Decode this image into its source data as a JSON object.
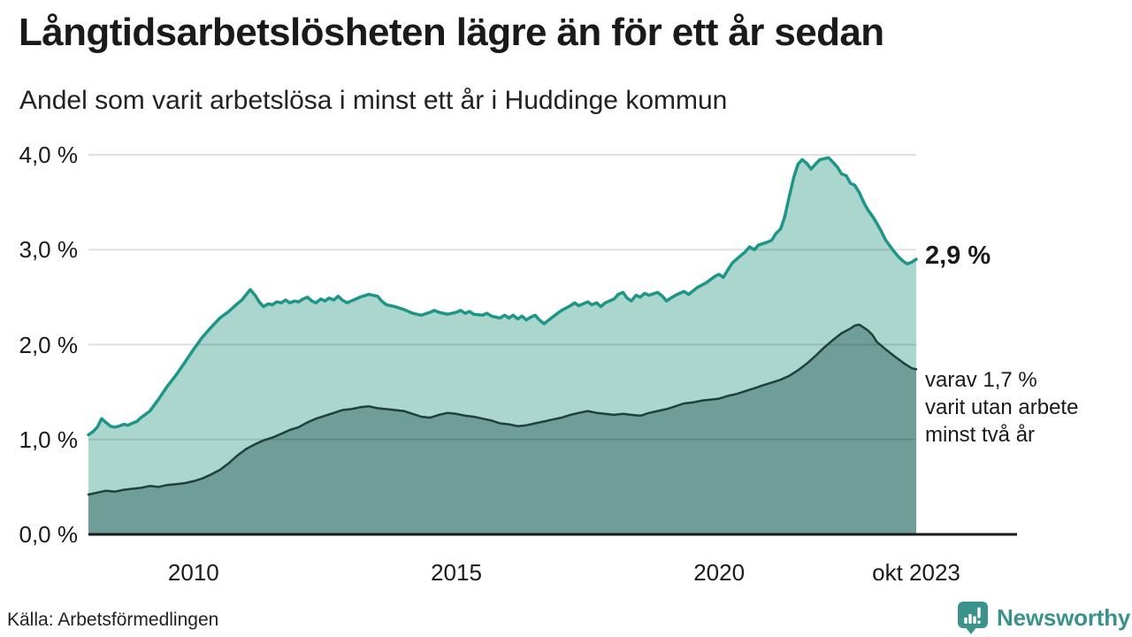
{
  "header": {
    "title": "Långtidsarbetslösheten lägre än för ett år sedan",
    "subtitle": "Andel som varit arbetslösa i minst ett år i Huddinge kommun"
  },
  "annotations": {
    "latest_value_label": "2,9 %",
    "secondary_label_lines": [
      "varav 1,7 %",
      "varit utan arbete",
      "minst två år"
    ]
  },
  "footer": {
    "source": "Källa: Arbetsförmedlingen",
    "brand_name": "Newsworthy"
  },
  "colors": {
    "series_one_line": "#1d9688",
    "series_one_fill": "#aad6ce",
    "series_two_line": "#20403c",
    "series_two_fill": "#6f9e99",
    "axis": "#1a1a1a",
    "grid": "rgba(0,0,0,0.12)",
    "brand_teal": "#3a938b",
    "text": "#1a1a1a"
  },
  "chart_data": {
    "type": "area",
    "title": "Långtidsarbetslösheten lägre än för ett år sedan",
    "subtitle": "Andel som varit arbetslösa i minst ett år i Huddinge kommun",
    "unit": "%",
    "grid": true,
    "xlim": [
      2008,
      2023.75
    ],
    "ylim": [
      0,
      4
    ],
    "y_ticks": [
      {
        "value": 0,
        "label": "0,0 %"
      },
      {
        "value": 1,
        "label": "1,0 %"
      },
      {
        "value": 2,
        "label": "2,0 %"
      },
      {
        "value": 3,
        "label": "3,0 %"
      },
      {
        "value": 4,
        "label": "4,0 %"
      }
    ],
    "x_ticks": [
      {
        "value": 2010,
        "label": "2010"
      },
      {
        "value": 2015,
        "label": "2015"
      },
      {
        "value": 2020,
        "label": "2020"
      },
      {
        "value": 2023.75,
        "label": "okt 2023"
      }
    ],
    "series": [
      {
        "name": "Arbetslösa minst ett år",
        "latest_label": "2,9 %",
        "points": [
          [
            2008.0,
            1.05
          ],
          [
            2008.08,
            1.08
          ],
          [
            2008.17,
            1.13
          ],
          [
            2008.25,
            1.22
          ],
          [
            2008.33,
            1.18
          ],
          [
            2008.42,
            1.14
          ],
          [
            2008.5,
            1.13
          ],
          [
            2008.58,
            1.14
          ],
          [
            2008.67,
            1.16
          ],
          [
            2008.75,
            1.15
          ],
          [
            2008.83,
            1.17
          ],
          [
            2008.92,
            1.19
          ],
          [
            2009.0,
            1.23
          ],
          [
            2009.17,
            1.3
          ],
          [
            2009.33,
            1.42
          ],
          [
            2009.5,
            1.56
          ],
          [
            2009.67,
            1.68
          ],
          [
            2009.83,
            1.81
          ],
          [
            2010.0,
            1.95
          ],
          [
            2010.17,
            2.08
          ],
          [
            2010.33,
            2.18
          ],
          [
            2010.5,
            2.28
          ],
          [
            2010.67,
            2.35
          ],
          [
            2010.83,
            2.43
          ],
          [
            2010.92,
            2.47
          ],
          [
            2011.08,
            2.58
          ],
          [
            2011.17,
            2.52
          ],
          [
            2011.25,
            2.45
          ],
          [
            2011.33,
            2.4
          ],
          [
            2011.42,
            2.43
          ],
          [
            2011.5,
            2.42
          ],
          [
            2011.58,
            2.45
          ],
          [
            2011.67,
            2.44
          ],
          [
            2011.75,
            2.47
          ],
          [
            2011.83,
            2.44
          ],
          [
            2011.92,
            2.46
          ],
          [
            2012.0,
            2.45
          ],
          [
            2012.08,
            2.48
          ],
          [
            2012.17,
            2.5
          ],
          [
            2012.25,
            2.46
          ],
          [
            2012.33,
            2.44
          ],
          [
            2012.42,
            2.48
          ],
          [
            2012.5,
            2.46
          ],
          [
            2012.58,
            2.49
          ],
          [
            2012.67,
            2.47
          ],
          [
            2012.75,
            2.51
          ],
          [
            2012.83,
            2.47
          ],
          [
            2012.92,
            2.44
          ],
          [
            2013.0,
            2.46
          ],
          [
            2013.17,
            2.5
          ],
          [
            2013.33,
            2.53
          ],
          [
            2013.5,
            2.51
          ],
          [
            2013.58,
            2.46
          ],
          [
            2013.67,
            2.42
          ],
          [
            2013.83,
            2.4
          ],
          [
            2014.0,
            2.37
          ],
          [
            2014.17,
            2.33
          ],
          [
            2014.33,
            2.31
          ],
          [
            2014.5,
            2.34
          ],
          [
            2014.58,
            2.36
          ],
          [
            2014.67,
            2.34
          ],
          [
            2014.83,
            2.32
          ],
          [
            2015.0,
            2.34
          ],
          [
            2015.08,
            2.36
          ],
          [
            2015.17,
            2.33
          ],
          [
            2015.25,
            2.35
          ],
          [
            2015.33,
            2.32
          ],
          [
            2015.5,
            2.31
          ],
          [
            2015.58,
            2.33
          ],
          [
            2015.67,
            2.3
          ],
          [
            2015.83,
            2.28
          ],
          [
            2015.92,
            2.31
          ],
          [
            2016.0,
            2.28
          ],
          [
            2016.08,
            2.31
          ],
          [
            2016.17,
            2.27
          ],
          [
            2016.25,
            2.3
          ],
          [
            2016.33,
            2.26
          ],
          [
            2016.42,
            2.29
          ],
          [
            2016.5,
            2.31
          ],
          [
            2016.58,
            2.26
          ],
          [
            2016.67,
            2.22
          ],
          [
            2016.83,
            2.29
          ],
          [
            2017.0,
            2.36
          ],
          [
            2017.17,
            2.41
          ],
          [
            2017.25,
            2.44
          ],
          [
            2017.33,
            2.41
          ],
          [
            2017.5,
            2.45
          ],
          [
            2017.58,
            2.42
          ],
          [
            2017.67,
            2.44
          ],
          [
            2017.75,
            2.4
          ],
          [
            2017.83,
            2.44
          ],
          [
            2018.0,
            2.48
          ],
          [
            2018.08,
            2.53
          ],
          [
            2018.17,
            2.55
          ],
          [
            2018.25,
            2.49
          ],
          [
            2018.33,
            2.46
          ],
          [
            2018.42,
            2.52
          ],
          [
            2018.5,
            2.5
          ],
          [
            2018.58,
            2.54
          ],
          [
            2018.67,
            2.52
          ],
          [
            2018.83,
            2.55
          ],
          [
            2018.92,
            2.51
          ],
          [
            2019.0,
            2.46
          ],
          [
            2019.08,
            2.49
          ],
          [
            2019.17,
            2.52
          ],
          [
            2019.33,
            2.56
          ],
          [
            2019.42,
            2.53
          ],
          [
            2019.58,
            2.6
          ],
          [
            2019.75,
            2.65
          ],
          [
            2019.92,
            2.72
          ],
          [
            2020.0,
            2.74
          ],
          [
            2020.08,
            2.71
          ],
          [
            2020.17,
            2.79
          ],
          [
            2020.25,
            2.86
          ],
          [
            2020.33,
            2.9
          ],
          [
            2020.5,
            2.98
          ],
          [
            2020.58,
            3.03
          ],
          [
            2020.67,
            3.0
          ],
          [
            2020.75,
            3.05
          ],
          [
            2020.92,
            3.08
          ],
          [
            2021.0,
            3.1
          ],
          [
            2021.08,
            3.17
          ],
          [
            2021.17,
            3.22
          ],
          [
            2021.25,
            3.35
          ],
          [
            2021.33,
            3.55
          ],
          [
            2021.42,
            3.76
          ],
          [
            2021.5,
            3.9
          ],
          [
            2021.58,
            3.95
          ],
          [
            2021.67,
            3.91
          ],
          [
            2021.75,
            3.85
          ],
          [
            2021.83,
            3.9
          ],
          [
            2021.92,
            3.95
          ],
          [
            2022.0,
            3.96
          ],
          [
            2022.08,
            3.97
          ],
          [
            2022.17,
            3.92
          ],
          [
            2022.25,
            3.87
          ],
          [
            2022.33,
            3.8
          ],
          [
            2022.42,
            3.78
          ],
          [
            2022.5,
            3.7
          ],
          [
            2022.58,
            3.68
          ],
          [
            2022.67,
            3.6
          ],
          [
            2022.75,
            3.5
          ],
          [
            2022.83,
            3.42
          ],
          [
            2022.92,
            3.35
          ],
          [
            2023.0,
            3.28
          ],
          [
            2023.08,
            3.2
          ],
          [
            2023.17,
            3.1
          ],
          [
            2023.25,
            3.04
          ],
          [
            2023.33,
            2.98
          ],
          [
            2023.42,
            2.92
          ],
          [
            2023.5,
            2.88
          ],
          [
            2023.58,
            2.85
          ],
          [
            2023.67,
            2.87
          ],
          [
            2023.75,
            2.9
          ]
        ]
      },
      {
        "name": "Varav utan arbete minst två år",
        "latest_label": "1,7 %",
        "points": [
          [
            2008.0,
            0.42
          ],
          [
            2008.17,
            0.44
          ],
          [
            2008.33,
            0.46
          ],
          [
            2008.5,
            0.45
          ],
          [
            2008.67,
            0.47
          ],
          [
            2008.83,
            0.48
          ],
          [
            2009.0,
            0.49
          ],
          [
            2009.17,
            0.51
          ],
          [
            2009.33,
            0.5
          ],
          [
            2009.5,
            0.52
          ],
          [
            2009.67,
            0.53
          ],
          [
            2009.83,
            0.54
          ],
          [
            2010.0,
            0.56
          ],
          [
            2010.17,
            0.59
          ],
          [
            2010.33,
            0.63
          ],
          [
            2010.5,
            0.68
          ],
          [
            2010.67,
            0.75
          ],
          [
            2010.83,
            0.83
          ],
          [
            2011.0,
            0.9
          ],
          [
            2011.17,
            0.95
          ],
          [
            2011.33,
            0.99
          ],
          [
            2011.5,
            1.02
          ],
          [
            2011.67,
            1.06
          ],
          [
            2011.83,
            1.1
          ],
          [
            2012.0,
            1.13
          ],
          [
            2012.17,
            1.18
          ],
          [
            2012.33,
            1.22
          ],
          [
            2012.5,
            1.25
          ],
          [
            2012.67,
            1.28
          ],
          [
            2012.83,
            1.31
          ],
          [
            2013.0,
            1.32
          ],
          [
            2013.17,
            1.34
          ],
          [
            2013.33,
            1.35
          ],
          [
            2013.5,
            1.33
          ],
          [
            2013.67,
            1.32
          ],
          [
            2013.83,
            1.31
          ],
          [
            2014.0,
            1.3
          ],
          [
            2014.17,
            1.27
          ],
          [
            2014.33,
            1.24
          ],
          [
            2014.5,
            1.23
          ],
          [
            2014.67,
            1.26
          ],
          [
            2014.83,
            1.28
          ],
          [
            2015.0,
            1.27
          ],
          [
            2015.17,
            1.25
          ],
          [
            2015.33,
            1.24
          ],
          [
            2015.5,
            1.22
          ],
          [
            2015.67,
            1.2
          ],
          [
            2015.83,
            1.17
          ],
          [
            2016.0,
            1.16
          ],
          [
            2016.17,
            1.14
          ],
          [
            2016.33,
            1.15
          ],
          [
            2016.5,
            1.17
          ],
          [
            2016.67,
            1.19
          ],
          [
            2016.83,
            1.21
          ],
          [
            2017.0,
            1.23
          ],
          [
            2017.17,
            1.26
          ],
          [
            2017.33,
            1.28
          ],
          [
            2017.5,
            1.3
          ],
          [
            2017.67,
            1.28
          ],
          [
            2017.83,
            1.27
          ],
          [
            2018.0,
            1.26
          ],
          [
            2018.17,
            1.27
          ],
          [
            2018.33,
            1.26
          ],
          [
            2018.5,
            1.25
          ],
          [
            2018.67,
            1.28
          ],
          [
            2018.83,
            1.3
          ],
          [
            2019.0,
            1.32
          ],
          [
            2019.17,
            1.35
          ],
          [
            2019.33,
            1.38
          ],
          [
            2019.5,
            1.39
          ],
          [
            2019.67,
            1.41
          ],
          [
            2019.83,
            1.42
          ],
          [
            2020.0,
            1.43
          ],
          [
            2020.17,
            1.46
          ],
          [
            2020.33,
            1.48
          ],
          [
            2020.5,
            1.51
          ],
          [
            2020.67,
            1.54
          ],
          [
            2020.83,
            1.57
          ],
          [
            2021.0,
            1.6
          ],
          [
            2021.17,
            1.63
          ],
          [
            2021.33,
            1.67
          ],
          [
            2021.5,
            1.73
          ],
          [
            2021.67,
            1.8
          ],
          [
            2021.83,
            1.88
          ],
          [
            2022.0,
            1.97
          ],
          [
            2022.17,
            2.05
          ],
          [
            2022.33,
            2.12
          ],
          [
            2022.5,
            2.17
          ],
          [
            2022.58,
            2.2
          ],
          [
            2022.67,
            2.21
          ],
          [
            2022.75,
            2.18
          ],
          [
            2022.83,
            2.15
          ],
          [
            2022.92,
            2.1
          ],
          [
            2023.0,
            2.03
          ],
          [
            2023.17,
            1.95
          ],
          [
            2023.33,
            1.88
          ],
          [
            2023.5,
            1.81
          ],
          [
            2023.58,
            1.78
          ],
          [
            2023.67,
            1.75
          ],
          [
            2023.75,
            1.74
          ]
        ]
      }
    ]
  }
}
